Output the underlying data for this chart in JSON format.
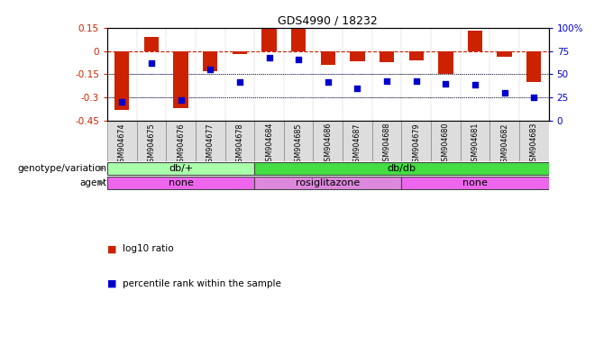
{
  "title": "GDS4990 / 18232",
  "samples": [
    "GSM904674",
    "GSM904675",
    "GSM904676",
    "GSM904677",
    "GSM904678",
    "GSM904684",
    "GSM904685",
    "GSM904686",
    "GSM904687",
    "GSM904688",
    "GSM904679",
    "GSM904680",
    "GSM904681",
    "GSM904682",
    "GSM904683"
  ],
  "log10_ratio": [
    -0.38,
    0.09,
    -0.37,
    -0.13,
    -0.02,
    0.14,
    0.145,
    -0.09,
    -0.065,
    -0.07,
    -0.06,
    -0.15,
    0.13,
    -0.04,
    -0.2
  ],
  "percentile": [
    20,
    62,
    22,
    55,
    42,
    68,
    66,
    42,
    35,
    43,
    43,
    40,
    39,
    30,
    25
  ],
  "ylim_left": [
    -0.45,
    0.15
  ],
  "ylim_right": [
    0,
    100
  ],
  "yticks_left": [
    0.15,
    0,
    -0.15,
    -0.3,
    -0.45
  ],
  "yticks_right": [
    100,
    75,
    50,
    25,
    0
  ],
  "bar_color": "#CC2200",
  "dot_color": "#0000CC",
  "hline_color": "#CC2200",
  "genotype_groups": [
    {
      "label": "db/+",
      "start": 0,
      "end": 5,
      "color": "#AAFFAA"
    },
    {
      "label": "db/db",
      "start": 5,
      "end": 15,
      "color": "#44DD44"
    }
  ],
  "agent_groups": [
    {
      "label": "none",
      "start": 0,
      "end": 5,
      "color": "#EE66EE"
    },
    {
      "label": "rosiglitazone",
      "start": 5,
      "end": 10,
      "color": "#DD88DD"
    },
    {
      "label": "none",
      "start": 10,
      "end": 15,
      "color": "#EE66EE"
    }
  ],
  "legend_bar_label": "log10 ratio",
  "legend_dot_label": "percentile rank within the sample",
  "genotype_label": "genotype/variation",
  "agent_label": "agent"
}
